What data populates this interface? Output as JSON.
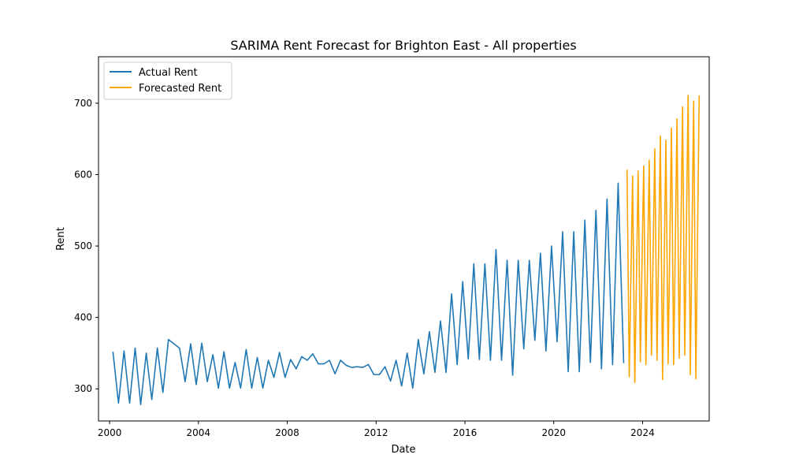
{
  "chart_data": {
    "type": "line",
    "title": "SARIMA Rent Forecast for Brighton East - All properties",
    "xlabel": "Date",
    "ylabel": "Rent",
    "xlim": [
      1999.5,
      2027.0
    ],
    "ylim": [
      255,
      765
    ],
    "x_ticks": [
      2000,
      2004,
      2008,
      2012,
      2016,
      2020,
      2024
    ],
    "y_ticks": [
      300,
      400,
      500,
      600,
      700
    ],
    "grid": false,
    "legend_position": "top-left",
    "series": [
      {
        "name": "Actual Rent",
        "color": "#1f77b4",
        "x": [
          2000.15,
          2000.4,
          2000.65,
          2000.9,
          2001.15,
          2001.4,
          2001.65,
          2001.9,
          2002.15,
          2002.4,
          2002.65,
          2002.9,
          2003.15,
          2003.4,
          2003.65,
          2003.9,
          2004.15,
          2004.4,
          2004.65,
          2004.9,
          2005.15,
          2005.4,
          2005.65,
          2005.9,
          2006.15,
          2006.4,
          2006.65,
          2006.9,
          2007.15,
          2007.4,
          2007.65,
          2007.9,
          2008.15,
          2008.4,
          2008.65,
          2008.9,
          2009.15,
          2009.4,
          2009.65,
          2009.9,
          2010.15,
          2010.4,
          2010.65,
          2010.9,
          2011.15,
          2011.4,
          2011.65,
          2011.9,
          2012.15,
          2012.4,
          2012.65,
          2012.9,
          2013.15,
          2013.4,
          2013.65,
          2013.9,
          2014.15,
          2014.4,
          2014.65,
          2014.9,
          2015.15,
          2015.4,
          2015.65,
          2015.9,
          2016.15,
          2016.4,
          2016.65,
          2016.9,
          2017.15,
          2017.4,
          2017.65,
          2017.9,
          2018.15,
          2018.4,
          2018.65,
          2018.9,
          2019.15,
          2019.4,
          2019.65,
          2019.9,
          2020.15,
          2020.4,
          2020.65,
          2020.9,
          2021.15,
          2021.4,
          2021.65,
          2021.9,
          2022.15,
          2022.4,
          2022.65,
          2022.9,
          2023.15
        ],
        "y": [
          352,
          280,
          353,
          280,
          357,
          278,
          350,
          285,
          357,
          295,
          369,
          363,
          357,
          310,
          363,
          306,
          364,
          310,
          348,
          301,
          352,
          301,
          337,
          301,
          355,
          301,
          344,
          301,
          340,
          316,
          351,
          316,
          341,
          328,
          345,
          340,
          349,
          335,
          335,
          340,
          321,
          340,
          333,
          330,
          331,
          330,
          334,
          320,
          320,
          331,
          311,
          340,
          304,
          350,
          301,
          369,
          321,
          380,
          323,
          395,
          323,
          433,
          334,
          450,
          342,
          475,
          341,
          475,
          340,
          495,
          340,
          480,
          319,
          480,
          356,
          480,
          368,
          490,
          353,
          500,
          366,
          520,
          324,
          520,
          324,
          536,
          337,
          550,
          328,
          566,
          334,
          588,
          336
        ]
      },
      {
        "name": "Forecasted Rent",
        "color": "#ffa500",
        "x": [
          2023.3,
          2023.4,
          2023.55,
          2023.65,
          2023.8,
          2023.9,
          2024.05,
          2024.15,
          2024.3,
          2024.4,
          2024.55,
          2024.65,
          2024.8,
          2024.9,
          2025.05,
          2025.15,
          2025.3,
          2025.4,
          2025.55,
          2025.65,
          2025.8,
          2025.9,
          2026.05,
          2026.15,
          2026.3,
          2026.4,
          2026.55
        ],
        "y": [
          607,
          317,
          598,
          309,
          605,
          338,
          612,
          334,
          620,
          347,
          636,
          340,
          654,
          313,
          648,
          335,
          665,
          334,
          678,
          343,
          695,
          347,
          711,
          320,
          703,
          314,
          711
        ]
      }
    ]
  }
}
